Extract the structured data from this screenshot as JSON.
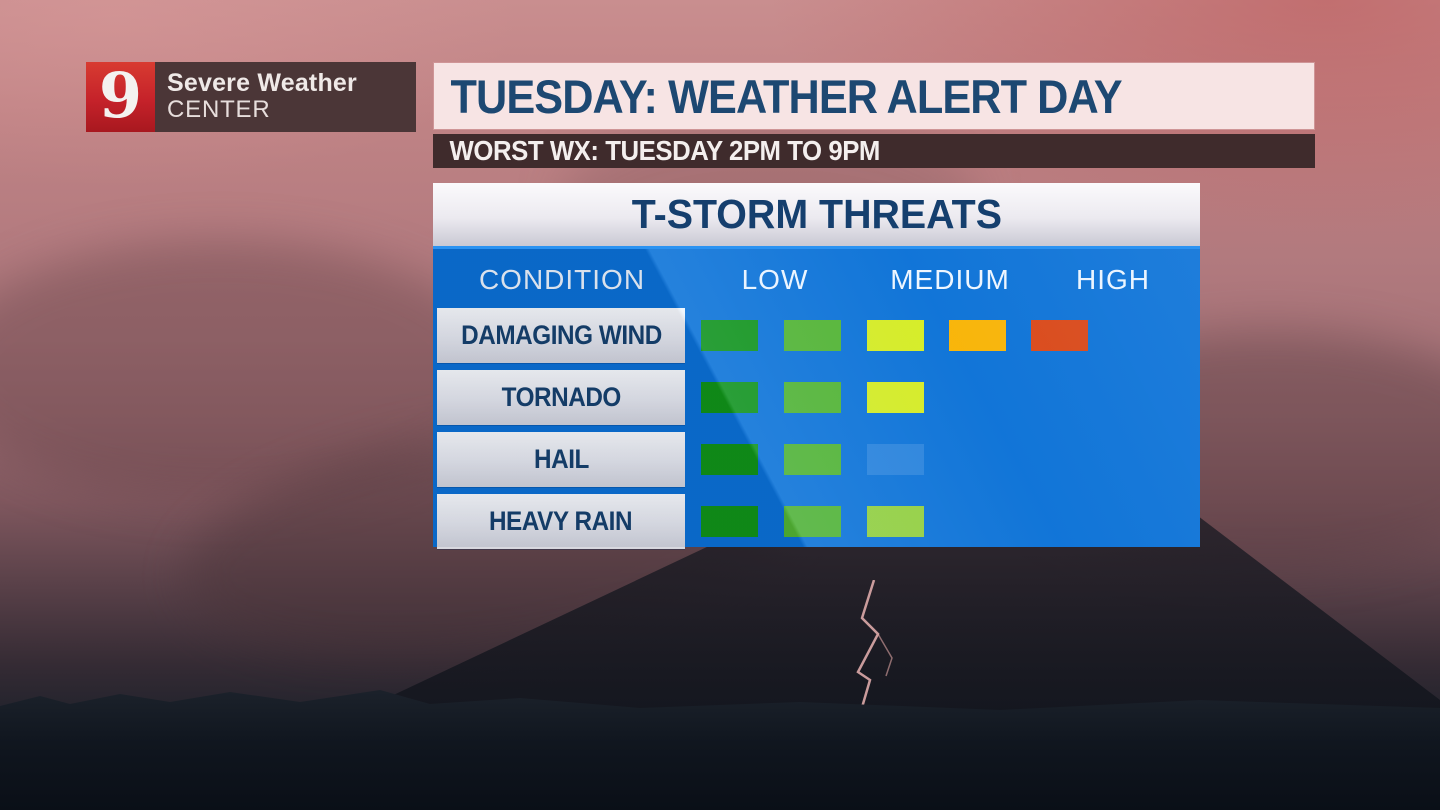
{
  "logo": {
    "channel": "9",
    "line1": "Severe Weather",
    "line2": "CENTER"
  },
  "banner": {
    "title": "TUESDAY: WEATHER ALERT DAY",
    "subtitle": "WORST WX: TUESDAY 2PM TO 9PM"
  },
  "threat_table": {
    "title": "T-STORM THREATS",
    "columns": [
      "CONDITION",
      "LOW",
      "MEDIUM",
      "HIGH"
    ],
    "rows": [
      {
        "label": "DAMAGING WIND",
        "blocks": [
          "#119412",
          "#54b52d",
          "#d9ee1f",
          "#fcb401",
          "#de4511"
        ]
      },
      {
        "label": "TORNADO",
        "blocks": [
          "#119412",
          "#54b52d",
          "#d9ee1f"
        ]
      },
      {
        "label": "HAIL",
        "blocks": [
          "#119412",
          "#54b52d",
          "ghost"
        ]
      },
      {
        "label": "HEAVY RAIN",
        "blocks": [
          "#119412",
          "#54b52d",
          "#97d23a"
        ]
      }
    ],
    "ghost_color": "rgba(130,185,235,0.25)"
  },
  "chart_data": {
    "type": "heatmap",
    "title": "T-STORM THREATS",
    "columns": [
      "CONDITION",
      "LOW",
      "MEDIUM",
      "HIGH"
    ],
    "categories": [
      "DAMAGING WIND",
      "TORNADO",
      "HAIL",
      "HEAVY RAIN"
    ],
    "values": [
      5,
      3,
      2,
      3
    ],
    "value_scale": "number of lit blocks on a 5-step low-to-high scale",
    "series": [
      {
        "name": "DAMAGING WIND",
        "level": "HIGH",
        "lit_blocks": 5
      },
      {
        "name": "TORNADO",
        "level": "MEDIUM",
        "lit_blocks": 3
      },
      {
        "name": "HAIL",
        "level": "LOW",
        "lit_blocks": 2
      },
      {
        "name": "HEAVY RAIN",
        "level": "MEDIUM",
        "lit_blocks": 3
      }
    ],
    "legend_position": "top header row",
    "scale_colors": [
      "#119412",
      "#54b52d",
      "#d9ee1f",
      "#fcb401",
      "#de4511"
    ]
  },
  "colors": {
    "panel_blue": "#0b71d6",
    "banner_pink": "#f7e4e4",
    "banner_text_navy": "#1d4872",
    "subbanner_brown": "#3f2b2c",
    "logo_red": "#c5222a",
    "logo_brown": "#4b3637",
    "label_text_navy": "#16406b"
  },
  "layout": {
    "col_header_centers": [
      129,
      342,
      517,
      680
    ],
    "row_tops": [
      122,
      184,
      246,
      308
    ],
    "block_lefts": [
      268,
      351,
      434,
      516,
      598
    ]
  }
}
